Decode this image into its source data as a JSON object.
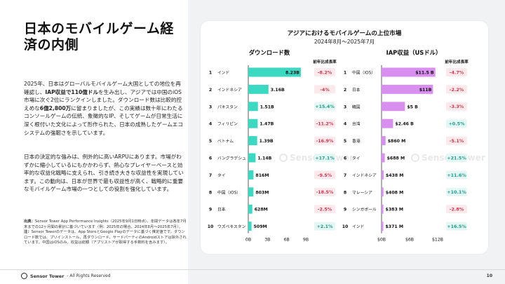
{
  "left": {
    "title": "日本のモバイルゲーム経済の内側",
    "paragraph1": [
      {
        "t": "2025年、日本はグローバルモバイルゲーム大国としての地位を再確認し、",
        "b": false
      },
      {
        "t": "IAP収益で110億ドル",
        "b": true
      },
      {
        "t": "を生み出し、アジアでは中国のiOS市場に次ぐ2位にランクインしました。ダウンロード数は比較的控えめな",
        "b": false
      },
      {
        "t": "6億2,800万",
        "b": true
      },
      {
        "t": "に留まりましたが、この実績は数十年にわたるコンソールゲームの伝統、象徴的なIP、そしてゲームが日常生活に深く根付いた文化によって形作られた、日本の成熟したゲームエコシステムの強靭さを示しています。",
        "b": false
      }
    ],
    "paragraph2": "日本の決定的な強みは、例外的に高いARPUにあります。市場がわずかに縮小しているにもかかわらず、熱心なプレイヤーベースと効率的な収益化戦略に支えられ、引き続き大きな収益性を実現しています。この動向は、日本が世界で最も収益性が高く、戦略的に重要なモバイルゲーム市場の一つとしての役割を強化しています。",
    "source_label": "出典：",
    "source_text": "Sensor Tower App Performance Insights（2025年9月1日時点）。年間データは各年7月末までの12ヶ月間の累計に基づいています（例：2025年の場合、2024年8月〜2025年7月）。",
    "note_label": "注：",
    "note_text": "Sensor Towerのデータは、App StoreとGoogle Playのデータに基づく推定値です。ダウンロード数では、プリインストール、再ダウンロード、サードパーティのAndroidストアは除外されています。中国はiOSのみ。収益は総額（アプリストアが取得する手数料を含みます）。"
  },
  "footer": {
    "brand": "Sensor Tower",
    "rights": "- All Rights Reserved",
    "page": "10"
  },
  "watermark": "Sensor Tower",
  "chart_data": [
    {
      "type": "bar",
      "title": "アジアにおけるモバイルゲームの上位市場",
      "subtitle": "2024年8月〜2025年7月",
      "panel_title": "ダウンロード数",
      "yoy_label": "前年比成長率",
      "color": "#3cd9c2",
      "ranks": [
        "1",
        "2",
        "3",
        "4",
        "5",
        "6",
        "7",
        "8",
        "9",
        "10"
      ],
      "categories": [
        "インド",
        "インドネシア",
        "パキスタン",
        "フィリピン",
        "ベトナム",
        "バングラデシュ",
        "タイ",
        "中国（iOS）",
        "日本",
        "ウズベキスタン"
      ],
      "values": [
        8.23,
        3.16,
        1.51,
        1.47,
        1.39,
        1.14,
        0.816,
        0.803,
        0.628,
        0.509
      ],
      "value_labels": [
        "8.23B",
        "3.16B",
        "1.51B",
        "1.47B",
        "1.39B",
        "1.14B",
        "816M",
        "803M",
        "628M",
        "509M"
      ],
      "yoy": [
        "-8.2%",
        "-4%",
        "+15.4%",
        "-11.2%",
        "-16.9%",
        "+17.1%",
        "-9.5%",
        "-18.5%",
        "-2.5%",
        "+2.1%"
      ],
      "xticks": [
        "0B",
        "3B",
        "6B",
        "9B"
      ],
      "xlim": [
        0,
        9
      ]
    },
    {
      "type": "bar",
      "panel_title": "IAP収益（USドル）",
      "yoy_label": "前年比成長率",
      "color": "#d98ff0",
      "ranks": [
        "1",
        "2",
        "3",
        "4",
        "5",
        "6",
        "7",
        "8",
        "9",
        "10"
      ],
      "categories": [
        "中国（iOS）",
        "日本",
        "韓国",
        "台湾",
        "香港",
        "タイ",
        "インドネシア",
        "マレーシア",
        "シンガポール",
        "インド"
      ],
      "values": [
        11.5,
        11,
        5,
        2.46,
        0.86,
        0.688,
        0.438,
        0.408,
        0.383,
        0.371
      ],
      "value_labels": [
        "$11.5 B",
        "$11B",
        "$5 B",
        "$2.46 B",
        "$860 M",
        "$688 M",
        "$438 M",
        "$408 M",
        "$383 M",
        "$371 M"
      ],
      "yoy": [
        "-4.7%",
        "-2.2%",
        "-3.3%",
        "+0.5%",
        "-5.1%",
        "+21.5%",
        "+11.6%",
        "+10.1%",
        "-2.8%",
        "+16.5%"
      ],
      "xticks": [
        "$0B",
        "$6B",
        "$12B"
      ],
      "xlim": [
        0,
        12
      ]
    }
  ]
}
